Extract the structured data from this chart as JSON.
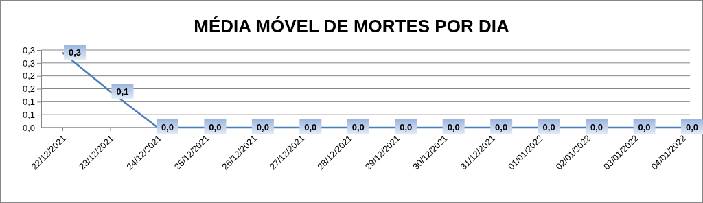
{
  "chart_data": {
    "type": "line",
    "title": "MÉDIA MÓVEL DE MORTES POR DIA",
    "categories": [
      "22/12/2021",
      "23/12/2021",
      "24/12/2021",
      "25/12/2021",
      "26/12/2021",
      "27/12/2021",
      "28/12/2021",
      "29/12/2021",
      "30/12/2021",
      "31/12/2021",
      "01/01/2022",
      "02/01/2022",
      "03/01/2022",
      "04/01/2022"
    ],
    "series": [
      {
        "color": "#4a7ebb",
        "values": [
          0.29,
          0.14,
          0,
          0,
          0,
          0,
          0,
          0,
          0,
          0,
          0,
          0,
          0,
          0
        ],
        "value_labels": [
          "0,3",
          "0,1",
          "0,0",
          "0,0",
          "0,0",
          "0,0",
          "0,0",
          "0,0",
          "0,0",
          "0,0",
          "0,0",
          "0,0",
          "0,0",
          "0,0"
        ]
      }
    ],
    "ylim": [
      0,
      0.3
    ],
    "yticks": [
      {
        "value": 0,
        "label": "0,0"
      },
      {
        "value": 0.05,
        "label": "0,1"
      },
      {
        "value": 0.1,
        "label": "0,1"
      },
      {
        "value": 0.15,
        "label": "0,2"
      },
      {
        "value": 0.2,
        "label": "0,2"
      },
      {
        "value": 0.25,
        "label": "0,3"
      },
      {
        "value": 0.3,
        "label": "0,3"
      }
    ],
    "grid": "y",
    "marker": "none",
    "line_style": "solid"
  }
}
